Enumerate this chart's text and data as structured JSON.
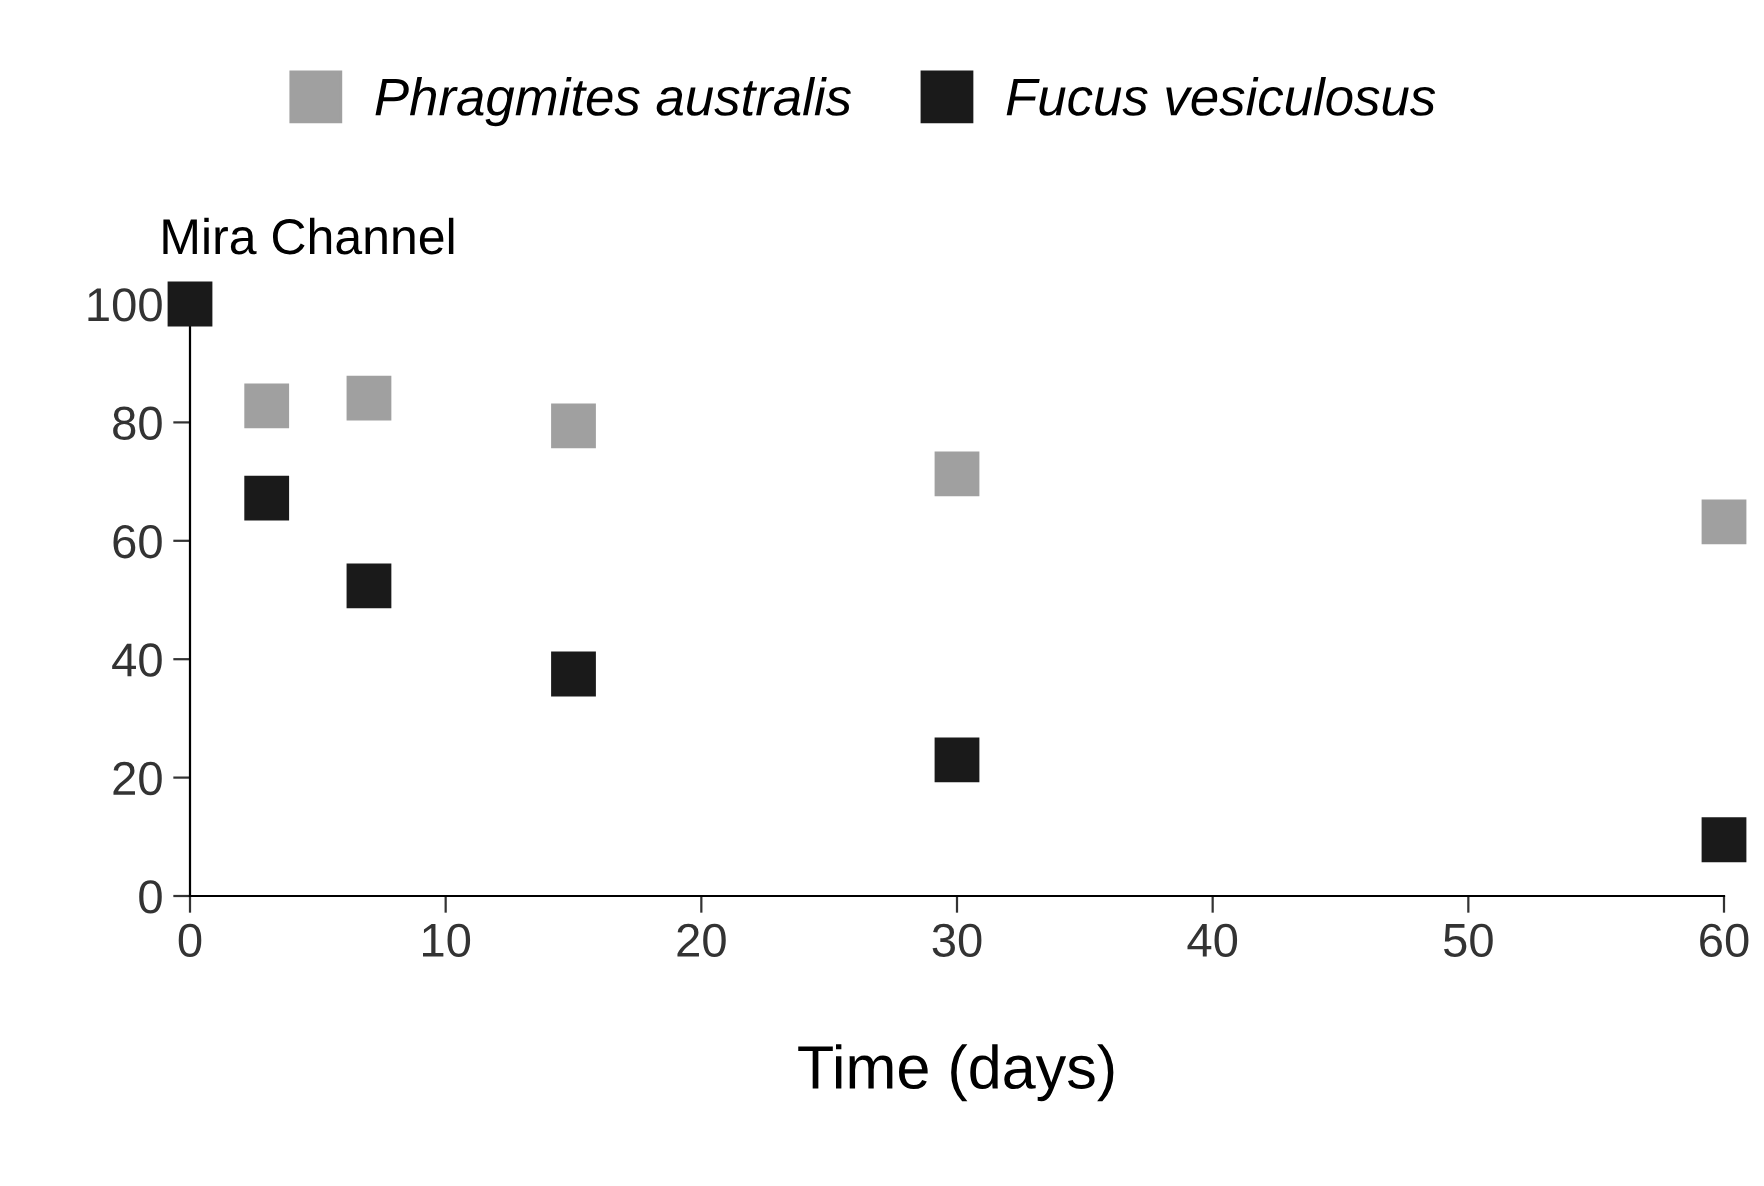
{
  "chart_data": {
    "type": "scatter",
    "title": "Mira Channel",
    "xlabel": "Time (days)",
    "x": [
      0,
      3,
      7,
      15,
      30,
      60
    ],
    "series": [
      {
        "name": "Phragmites australis",
        "color": "#a0a0a0",
        "values": [
          null,
          82.8,
          84.1,
          79.4,
          71.3,
          63.2
        ]
      },
      {
        "name": "Fucus vesiculosus",
        "color": "#1a1a1a",
        "values": [
          100,
          67.2,
          52.4,
          37.5,
          23,
          9.5
        ]
      }
    ],
    "xlim": [
      0,
      60
    ],
    "xticks": [
      0,
      10,
      20,
      30,
      40,
      50,
      60
    ],
    "ylim": [
      0,
      100
    ],
    "yticks": [
      0,
      20,
      40,
      60,
      80,
      100
    ],
    "grid": false,
    "legend": "top",
    "marker": "square"
  }
}
